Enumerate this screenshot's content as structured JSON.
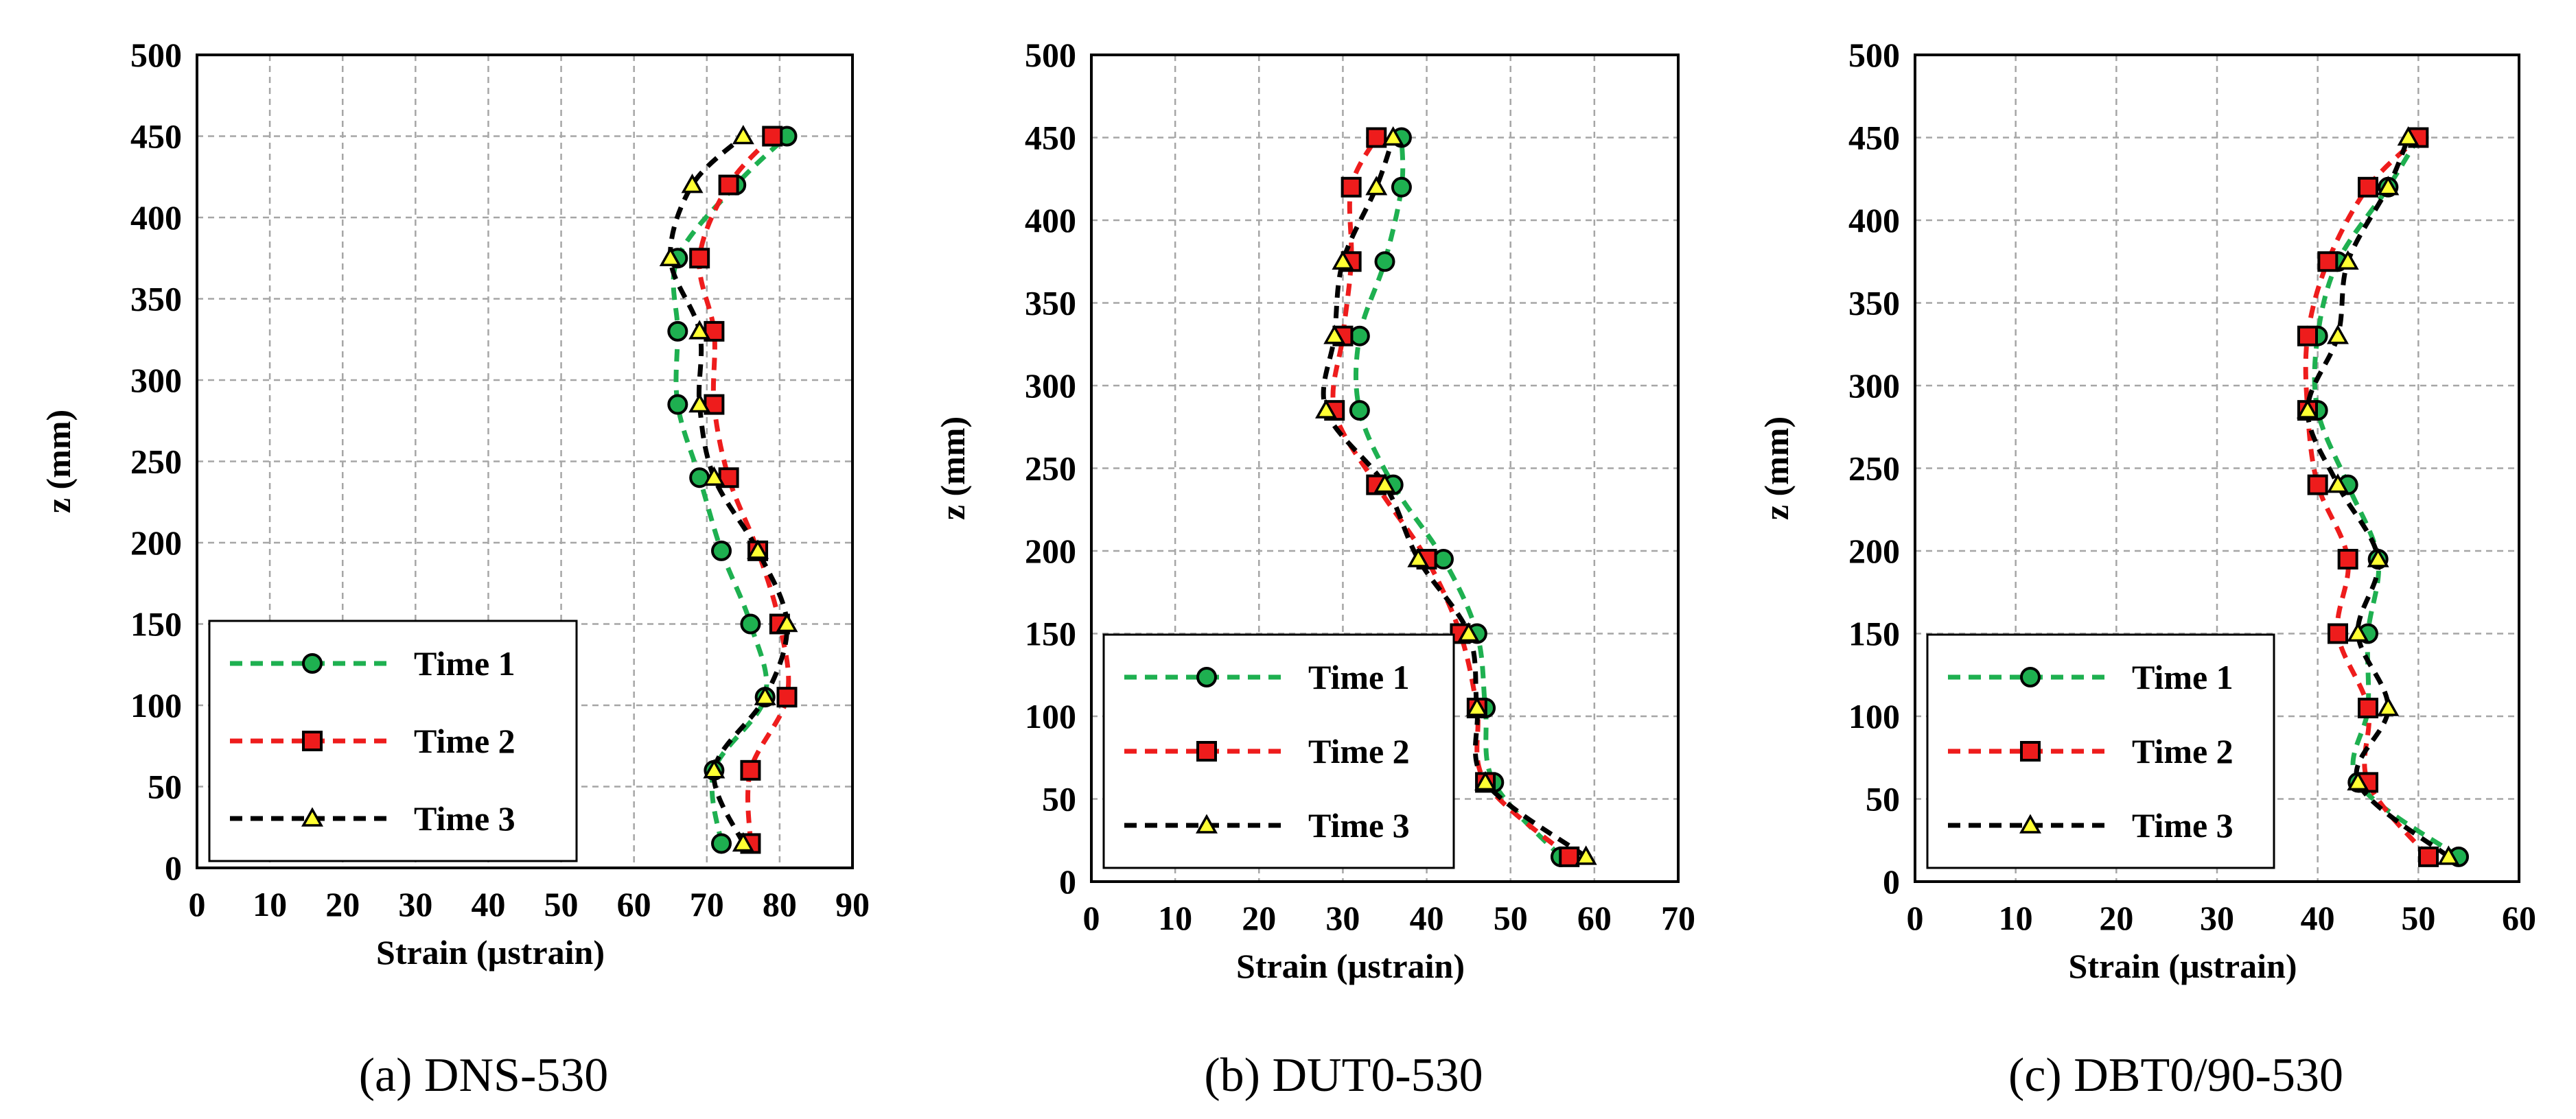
{
  "chart_data": [
    {
      "type": "line",
      "caption": "(a) DNS-530",
      "xlabel": "Strain (µstrain)",
      "ylabel": "z (mm)",
      "xlim": [
        0,
        90
      ],
      "ylim": [
        0,
        500
      ],
      "xticks": [
        0,
        10,
        20,
        30,
        40,
        50,
        60,
        70,
        80,
        90
      ],
      "yticks": [
        0,
        50,
        100,
        150,
        200,
        250,
        300,
        350,
        400,
        450,
        500
      ],
      "grid": true,
      "legend_position": "bottom-left",
      "series": [
        {
          "name": "Time 1",
          "color": "#1eb050",
          "marker": "circle",
          "points": [
            [
              72,
              15
            ],
            [
              71,
              60
            ],
            [
              78,
              105
            ],
            [
              76,
              150
            ],
            [
              72,
              195
            ],
            [
              69,
              240
            ],
            [
              66,
              285
            ],
            [
              66,
              330
            ],
            [
              66,
              375
            ],
            [
              74,
              420
            ],
            [
              81,
              450
            ]
          ]
        },
        {
          "name": "Time 2",
          "color": "#ee1c1c",
          "marker": "square",
          "points": [
            [
              76,
              15
            ],
            [
              76,
              60
            ],
            [
              81,
              105
            ],
            [
              80,
              150
            ],
            [
              77,
              195
            ],
            [
              73,
              240
            ],
            [
              71,
              285
            ],
            [
              71,
              330
            ],
            [
              69,
              375
            ],
            [
              73,
              420
            ],
            [
              79,
              450
            ]
          ]
        },
        {
          "name": "Time 3",
          "color": "#000000",
          "marker": "triangle",
          "points": [
            [
              75,
              15
            ],
            [
              71,
              60
            ],
            [
              78,
              105
            ],
            [
              81,
              150
            ],
            [
              77,
              195
            ],
            [
              71,
              240
            ],
            [
              69,
              285
            ],
            [
              69,
              330
            ],
            [
              65,
              375
            ],
            [
              68,
              420
            ],
            [
              75,
              450
            ]
          ]
        }
      ]
    },
    {
      "type": "line",
      "caption": "(b) DUT0-530",
      "xlabel": "Strain (µstrain)",
      "ylabel": "z (mm)",
      "xlim": [
        0,
        70
      ],
      "ylim": [
        0,
        500
      ],
      "xticks": [
        0,
        10,
        20,
        30,
        40,
        50,
        60,
        70
      ],
      "yticks": [
        0,
        50,
        100,
        150,
        200,
        250,
        300,
        350,
        400,
        450,
        500
      ],
      "grid": true,
      "legend_position": "bottom-left",
      "series": [
        {
          "name": "Time 1",
          "color": "#1eb050",
          "marker": "circle",
          "points": [
            [
              56,
              15
            ],
            [
              48,
              60
            ],
            [
              47,
              105
            ],
            [
              46,
              150
            ],
            [
              42,
              195
            ],
            [
              36,
              240
            ],
            [
              32,
              285
            ],
            [
              32,
              330
            ],
            [
              35,
              375
            ],
            [
              37,
              420
            ],
            [
              37,
              450
            ]
          ]
        },
        {
          "name": "Time 2",
          "color": "#ee1c1c",
          "marker": "square",
          "points": [
            [
              57,
              15
            ],
            [
              47,
              60
            ],
            [
              46,
              105
            ],
            [
              44,
              150
            ],
            [
              40,
              195
            ],
            [
              34,
              240
            ],
            [
              29,
              285
            ],
            [
              30,
              330
            ],
            [
              31,
              375
            ],
            [
              31,
              420
            ],
            [
              34,
              450
            ]
          ]
        },
        {
          "name": "Time 3",
          "color": "#000000",
          "marker": "triangle",
          "points": [
            [
              59,
              15
            ],
            [
              47,
              60
            ],
            [
              46,
              105
            ],
            [
              45,
              150
            ],
            [
              39,
              195
            ],
            [
              35,
              240
            ],
            [
              28,
              285
            ],
            [
              29,
              330
            ],
            [
              30,
              375
            ],
            [
              34,
              420
            ],
            [
              36,
              450
            ]
          ]
        }
      ]
    },
    {
      "type": "line",
      "caption": "(c) DBT0/90-530",
      "xlabel": "Strain (µstrain)",
      "ylabel": "z (mm)",
      "xlim": [
        0,
        60
      ],
      "ylim": [
        0,
        500
      ],
      "xticks": [
        0,
        10,
        20,
        30,
        40,
        50,
        60
      ],
      "yticks": [
        0,
        50,
        100,
        150,
        200,
        250,
        300,
        350,
        400,
        450,
        500
      ],
      "grid": true,
      "legend_position": "bottom-left",
      "series": [
        {
          "name": "Time 1",
          "color": "#1eb050",
          "marker": "circle",
          "points": [
            [
              54,
              15
            ],
            [
              44,
              60
            ],
            [
              45,
              105
            ],
            [
              45,
              150
            ],
            [
              46,
              195
            ],
            [
              43,
              240
            ],
            [
              40,
              285
            ],
            [
              40,
              330
            ],
            [
              42,
              375
            ],
            [
              47,
              420
            ],
            [
              50,
              450
            ]
          ]
        },
        {
          "name": "Time 2",
          "color": "#ee1c1c",
          "marker": "square",
          "points": [
            [
              51,
              15
            ],
            [
              45,
              60
            ],
            [
              45,
              105
            ],
            [
              42,
              150
            ],
            [
              43,
              195
            ],
            [
              40,
              240
            ],
            [
              39,
              285
            ],
            [
              39,
              330
            ],
            [
              41,
              375
            ],
            [
              45,
              420
            ],
            [
              50,
              450
            ]
          ]
        },
        {
          "name": "Time 3",
          "color": "#000000",
          "marker": "triangle",
          "points": [
            [
              53,
              15
            ],
            [
              44,
              60
            ],
            [
              47,
              105
            ],
            [
              44,
              150
            ],
            [
              46,
              195
            ],
            [
              42,
              240
            ],
            [
              39,
              285
            ],
            [
              42,
              330
            ],
            [
              43,
              375
            ],
            [
              47,
              420
            ],
            [
              49,
              450
            ]
          ]
        }
      ]
    }
  ]
}
